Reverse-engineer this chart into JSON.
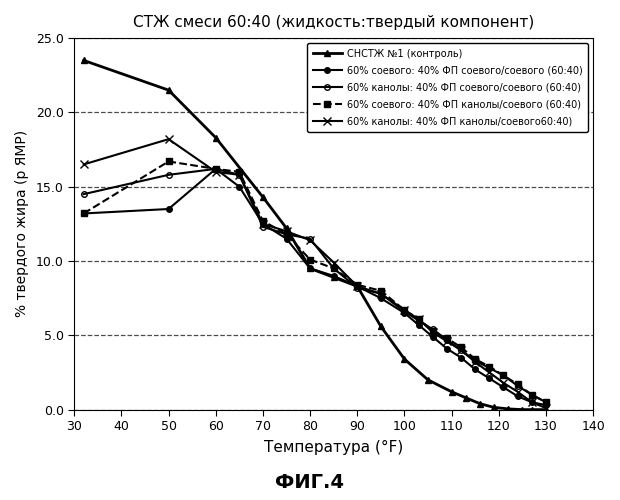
{
  "title": "СТЖ смеси 60:40 (жидкость:твердый компонент)",
  "xlabel": "Температура (°F)",
  "ylabel": "% твердого жира (р ЯМР)",
  "fig_label": "ФИГ.4",
  "xlim": [
    30,
    140
  ],
  "ylim": [
    0.0,
    25.0
  ],
  "xticks": [
    30,
    40,
    50,
    60,
    70,
    80,
    90,
    100,
    110,
    120,
    130,
    140
  ],
  "yticks": [
    0.0,
    5.0,
    10.0,
    15.0,
    20.0,
    25.0
  ],
  "series": [
    {
      "label": "СНСТЖ №1 (контроль)",
      "x": [
        32,
        50,
        60,
        70,
        75,
        80,
        85,
        90,
        95,
        100,
        105,
        110,
        113,
        116,
        119,
        122,
        125,
        127,
        130
      ],
      "y": [
        23.5,
        21.5,
        18.3,
        14.3,
        12.2,
        9.5,
        8.9,
        8.3,
        5.6,
        3.4,
        2.0,
        1.2,
        0.8,
        0.4,
        0.15,
        0.05,
        0.0,
        0.0,
        0.0
      ],
      "color": "black",
      "linestyle": "-",
      "marker": "^",
      "markersize": 5,
      "linewidth": 2.0,
      "fillstyle": "full"
    },
    {
      "label": "60% соевого: 40% ФП соевого/соевого (60:40)",
      "x": [
        32,
        50,
        60,
        65,
        70,
        75,
        80,
        85,
        90,
        95,
        100,
        103,
        106,
        109,
        112,
        115,
        118,
        121,
        124,
        127,
        130
      ],
      "y": [
        13.2,
        13.5,
        16.2,
        15.0,
        12.5,
        11.5,
        9.5,
        9.0,
        8.3,
        7.5,
        6.5,
        5.7,
        4.9,
        4.1,
        3.5,
        2.7,
        2.1,
        1.5,
        0.9,
        0.5,
        0.3
      ],
      "color": "black",
      "linestyle": "-",
      "marker": "o",
      "markersize": 4,
      "linewidth": 1.5,
      "fillstyle": "full"
    },
    {
      "label": "60% канолы: 40% ФП соевого/соевого (60:40)",
      "x": [
        32,
        50,
        60,
        65,
        70,
        75,
        80,
        85,
        90,
        95,
        100,
        103,
        106,
        109,
        112,
        115,
        118,
        121,
        124,
        127,
        130
      ],
      "y": [
        14.5,
        15.8,
        16.2,
        15.8,
        12.3,
        11.8,
        11.5,
        9.5,
        8.2,
        7.8,
        6.6,
        6.0,
        5.4,
        4.7,
        4.0,
        3.3,
        2.8,
        2.3,
        1.6,
        1.0,
        0.5
      ],
      "color": "black",
      "linestyle": "-",
      "marker": "o",
      "markersize": 4,
      "linewidth": 1.5,
      "fillstyle": "none"
    },
    {
      "label": "60% соевого: 40% ФП канолы/соевого (60:40)",
      "x": [
        32,
        50,
        60,
        65,
        70,
        75,
        80,
        85,
        90,
        95,
        100,
        103,
        106,
        109,
        112,
        115,
        118,
        121,
        124,
        127,
        130
      ],
      "y": [
        13.2,
        16.7,
        16.2,
        16.0,
        12.7,
        11.8,
        10.1,
        9.5,
        8.4,
        8.0,
        6.7,
        6.1,
        5.3,
        4.8,
        4.2,
        3.4,
        2.9,
        2.3,
        1.7,
        1.0,
        0.5
      ],
      "color": "black",
      "linestyle": "--",
      "marker": "s",
      "markersize": 4,
      "linewidth": 1.5,
      "fillstyle": "full"
    },
    {
      "label": "60% канолы: 40% ФП канолы/соевого60:40)",
      "x": [
        32,
        50,
        60,
        65,
        70,
        75,
        80,
        85,
        90,
        95,
        100,
        103,
        106,
        109,
        112,
        115,
        118,
        121,
        124,
        127,
        130
      ],
      "y": [
        16.5,
        18.2,
        16.0,
        15.8,
        12.5,
        12.0,
        11.4,
        9.9,
        8.3,
        7.8,
        6.7,
        6.1,
        5.2,
        4.6,
        4.0,
        3.2,
        2.5,
        1.8,
        1.2,
        0.5,
        0.1
      ],
      "color": "black",
      "linestyle": "-",
      "marker": "x",
      "markersize": 6,
      "linewidth": 1.5,
      "fillstyle": "full"
    }
  ],
  "background_color": "white",
  "grid_color": "black",
  "grid_linestyle": "--",
  "grid_alpha": 0.7
}
